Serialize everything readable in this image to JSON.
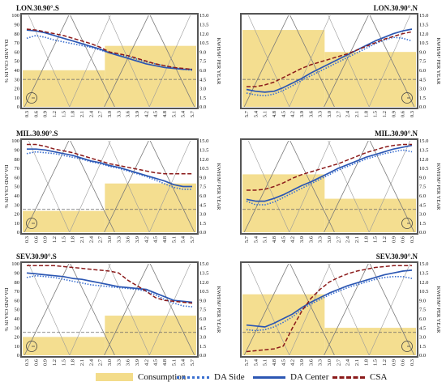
{
  "colors": {
    "consumption": "#f3dc8a",
    "da_side": "#3a6fd0",
    "da_center": "#2c57b3",
    "csa": "#8b1a1a",
    "frame": "#555555",
    "threshold": "#666666"
  },
  "legend": {
    "consumption": "Consumption",
    "da_side": "DA Side",
    "da_center": "DA Center",
    "csa": "CSA"
  },
  "chart_data": [
    {
      "type": "line",
      "title": "LON.30.90°.S",
      "ylabel": "DA AND CSA IN %",
      "y2label": "KWH/M² PER YEAR",
      "x_ticks": [
        "0.3",
        "0.6",
        "0.9",
        "1.2",
        "1.5",
        "1.8",
        "2.1",
        "2.4",
        "2.7",
        "3.0",
        "3.3",
        "3.6",
        "3.9",
        "4.2",
        "4.5",
        "4.8",
        "5.1",
        "5.4",
        "5.7"
      ],
      "ylim": [
        0,
        100
      ],
      "y_ticks": [
        "0",
        "10",
        "20",
        "30",
        "40",
        "50",
        "60",
        "70",
        "80",
        "90",
        "100"
      ],
      "y2lim": [
        0,
        15
      ],
      "y2_ticks": [
        "0.0",
        "1.5",
        "3.0",
        "4.5",
        "6.0",
        "7.5",
        "9.0",
        "10.5",
        "12.0",
        "13.5",
        "15.0"
      ],
      "consumption": [
        {
          "x_from": "0.3",
          "x_to": "2.7",
          "kwh": 6.0
        },
        {
          "x_from": "3.0",
          "x_to": "5.7",
          "kwh": 10.0
        }
      ],
      "threshold_y": 30,
      "series": [
        {
          "name": "DA Side",
          "values": [
            75,
            78,
            76,
            73,
            71,
            69,
            67,
            65,
            62,
            59,
            57,
            55,
            52,
            49,
            47,
            45,
            43,
            41,
            40
          ]
        },
        {
          "name": "DA Center",
          "values": [
            84,
            83,
            81,
            78,
            75,
            72,
            69,
            66,
            63,
            59,
            56,
            53,
            50,
            47,
            45,
            43,
            42,
            41,
            41
          ]
        },
        {
          "name": "CSA",
          "values": [
            85,
            84,
            82,
            80,
            78,
            75,
            72,
            69,
            65,
            60,
            58,
            56,
            53,
            50,
            47,
            45,
            43,
            42,
            41
          ]
        }
      ]
    },
    {
      "type": "line",
      "title": "LON.30.90°.N",
      "ylabel": "",
      "y2label": "KWH/M² PER YEAR",
      "x_ticks": [
        "5.7",
        "5.4",
        "5.1",
        "4.8",
        "4.5",
        "4.2",
        "3.9",
        "3.6",
        "3.3",
        "3.0",
        "2.7",
        "2.4",
        "2.1",
        "1.8",
        "1.5",
        "1.2",
        "0.9",
        "0.6",
        "0.3"
      ],
      "ylim": [
        0,
        100
      ],
      "y_ticks": [],
      "y2lim": [
        0,
        15
      ],
      "y2_ticks": [
        "0.0",
        "1.5",
        "3.0",
        "4.5",
        "6.0",
        "7.5",
        "9.0",
        "10.5",
        "12.0",
        "13.5",
        "15.0"
      ],
      "consumption": [
        {
          "x_from": "5.7",
          "x_to": "3.3",
          "kwh": 12.6
        },
        {
          "x_from": "3.0",
          "x_to": "0.3",
          "kwh": 9.0
        }
      ],
      "threshold_y": 30,
      "series": [
        {
          "name": "DA Side",
          "values": [
            15,
            13,
            12,
            14,
            18,
            23,
            29,
            34,
            39,
            44,
            49,
            54,
            59,
            64,
            69,
            73,
            76,
            75,
            72
          ]
        },
        {
          "name": "DA Center",
          "values": [
            19,
            17,
            16,
            17,
            21,
            26,
            31,
            37,
            42,
            47,
            52,
            57,
            62,
            67,
            72,
            76,
            80,
            83,
            85
          ]
        },
        {
          "name": "CSA",
          "values": [
            22,
            22,
            24,
            27,
            32,
            37,
            42,
            46,
            49,
            52,
            55,
            58,
            62,
            66,
            70,
            74,
            77,
            80,
            82
          ]
        }
      ]
    },
    {
      "type": "line",
      "title": "MIL.30.90°.S",
      "ylabel": "DA AND CSA IN %",
      "y2label": "KWH/M² PER YEAR",
      "x_ticks": [
        "0.3",
        "0.6",
        "0.9",
        "1.2",
        "1.5",
        "1.8",
        "2.1",
        "2.4",
        "2.7",
        "3.0",
        "3.3",
        "3.6",
        "3.9",
        "4.2",
        "4.5",
        "4.8",
        "5.1",
        "5.4",
        "5.7"
      ],
      "ylim": [
        0,
        100
      ],
      "y_ticks": [
        "0",
        "10",
        "20",
        "30",
        "40",
        "50",
        "60",
        "70",
        "80",
        "90",
        "100"
      ],
      "y2lim": [
        0,
        15
      ],
      "y2_ticks": [
        "0.0",
        "1.5",
        "3.0",
        "4.5",
        "6.0",
        "7.5",
        "9.0",
        "10.5",
        "12.0",
        "13.5",
        "15.0"
      ],
      "consumption": [
        {
          "x_from": "0.3",
          "x_to": "2.7",
          "kwh": 3.5
        },
        {
          "x_from": "3.0",
          "x_to": "5.7",
          "kwh": 8.0
        }
      ],
      "threshold_y": 25,
      "series": [
        {
          "name": "DA Side",
          "values": [
            86,
            88,
            87,
            86,
            84,
            82,
            80,
            77,
            75,
            72,
            70,
            67,
            64,
            61,
            57,
            53,
            49,
            47,
            47
          ]
        },
        {
          "name": "DA Center",
          "values": [
            91,
            91,
            90,
            88,
            86,
            84,
            81,
            78,
            76,
            73,
            71,
            68,
            65,
            62,
            59,
            56,
            52,
            50,
            50
          ]
        },
        {
          "name": "CSA",
          "values": [
            96,
            96,
            94,
            91,
            89,
            87,
            84,
            81,
            78,
            75,
            73,
            71,
            69,
            67,
            65,
            64,
            64,
            64,
            64
          ]
        }
      ]
    },
    {
      "type": "line",
      "title": "MIL.30.90°.N",
      "ylabel": "",
      "y2label": "KWH/M² PER YEAR",
      "x_ticks": [
        "5.7",
        "5.4",
        "5.1",
        "4.8",
        "4.5",
        "4.2",
        "3.9",
        "3.6",
        "3.3",
        "3.0",
        "2.7",
        "2.4",
        "2.1",
        "1.8",
        "1.5",
        "1.2",
        "0.9",
        "0.6",
        "0.3"
      ],
      "ylim": [
        0,
        100
      ],
      "y_ticks": [],
      "y2lim": [
        0,
        15
      ],
      "y2_ticks": [
        "0.0",
        "1.5",
        "3.0",
        "4.5",
        "6.0",
        "7.5",
        "9.0",
        "10.5",
        "12.0",
        "13.5",
        "15.0"
      ],
      "consumption": [
        {
          "x_from": "5.7",
          "x_to": "3.3",
          "kwh": 9.5
        },
        {
          "x_from": "3.0",
          "x_to": "0.3",
          "kwh": 5.5
        }
      ],
      "threshold_y": 25,
      "series": [
        {
          "name": "DA Side",
          "values": [
            34,
            30,
            30,
            33,
            38,
            43,
            48,
            53,
            58,
            63,
            68,
            72,
            76,
            80,
            83,
            86,
            88,
            90,
            88
          ]
        },
        {
          "name": "DA Center",
          "values": [
            36,
            34,
            34,
            37,
            41,
            46,
            51,
            55,
            60,
            65,
            70,
            74,
            78,
            82,
            85,
            88,
            91,
            93,
            95
          ]
        },
        {
          "name": "CSA",
          "values": [
            46,
            46,
            47,
            50,
            54,
            59,
            63,
            66,
            69,
            72,
            75,
            79,
            83,
            87,
            90,
            93,
            95,
            96,
            96
          ]
        }
      ]
    },
    {
      "type": "line",
      "title": "SEV.30.90°.S",
      "ylabel": "DA AND CSA IN %",
      "y2label": "KWH/M² PER YEAR",
      "x_ticks": [
        "0.3",
        "0.6",
        "0.9",
        "1.2",
        "1.5",
        "1.8",
        "2.1",
        "2.4",
        "2.7",
        "3.0",
        "3.3",
        "3.6",
        "3.9",
        "4.2",
        "4.5",
        "4.8",
        "5.1",
        "5.4",
        "5.7"
      ],
      "ylim": [
        0,
        100
      ],
      "y_ticks": [
        "0",
        "10",
        "20",
        "30",
        "40",
        "50",
        "60",
        "70",
        "80",
        "90",
        "100"
      ],
      "y2lim": [
        0,
        15
      ],
      "y2_ticks": [
        "0.0",
        "1.5",
        "3.0",
        "4.5",
        "6.0",
        "7.5",
        "9.0",
        "10.5",
        "12.0",
        "13.5",
        "15.0"
      ],
      "consumption": [
        {
          "x_from": "0.3",
          "x_to": "2.7",
          "kwh": 3.0
        },
        {
          "x_from": "3.0",
          "x_to": "5.7",
          "kwh": 6.5
        }
      ],
      "threshold_y": 25,
      "series": [
        {
          "name": "DA Side",
          "values": [
            85,
            87,
            86,
            85,
            83,
            81,
            79,
            77,
            76,
            75,
            74,
            73,
            72,
            70,
            66,
            61,
            57,
            54,
            53
          ]
        },
        {
          "name": "DA Center",
          "values": [
            90,
            89,
            88,
            87,
            86,
            84,
            83,
            81,
            79,
            77,
            75,
            74,
            73,
            72,
            68,
            64,
            60,
            59,
            58
          ]
        },
        {
          "name": "CSA",
          "values": [
            98,
            98,
            98,
            98,
            97,
            96,
            95,
            94,
            93,
            92,
            90,
            82,
            76,
            70,
            63,
            60,
            59,
            58,
            57
          ]
        }
      ]
    },
    {
      "type": "line",
      "title": "SEV.30.90°.N",
      "ylabel": "",
      "y2label": "KWH/M² PER YEAR",
      "x_ticks": [
        "5.7",
        "5.4",
        "5.1",
        "4.8",
        "4.5",
        "4.2",
        "3.9",
        "3.6",
        "3.3",
        "3.0",
        "2.7",
        "2.4",
        "2.1",
        "1.8",
        "1.5",
        "1.2",
        "0.9",
        "0.6",
        "0.3"
      ],
      "ylim": [
        0,
        100
      ],
      "y_ticks": [],
      "y2lim": [
        0,
        15
      ],
      "y2_ticks": [
        "0.0",
        "1.5",
        "3.0",
        "4.5",
        "6.0",
        "7.5",
        "9.0",
        "10.5",
        "12.0",
        "13.5",
        "15.0"
      ],
      "consumption": [
        {
          "x_from": "5.7",
          "x_to": "3.3",
          "kwh": 10.0
        },
        {
          "x_from": "3.0",
          "x_to": "0.3",
          "kwh": 4.5
        }
      ],
      "threshold_y": 25,
      "series": [
        {
          "name": "DA Side",
          "values": [
            28,
            27,
            28,
            31,
            36,
            42,
            50,
            56,
            61,
            66,
            70,
            74,
            77,
            80,
            83,
            85,
            86,
            86,
            84
          ]
        },
        {
          "name": "DA Center",
          "values": [
            33,
            32,
            31,
            35,
            40,
            45,
            52,
            58,
            63,
            68,
            72,
            76,
            79,
            82,
            85,
            88,
            90,
            92,
            93
          ]
        },
        {
          "name": "CSA",
          "values": [
            4,
            5,
            6,
            7,
            10,
            30,
            48,
            62,
            72,
            80,
            85,
            89,
            92,
            94,
            96,
            97,
            98,
            98,
            98
          ]
        }
      ]
    }
  ]
}
